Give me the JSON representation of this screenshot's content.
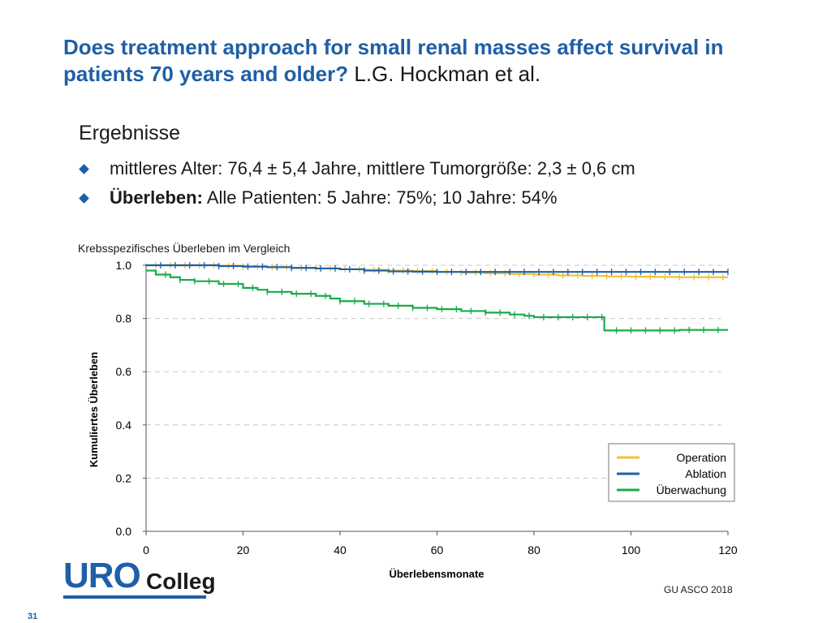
{
  "slide": {
    "title": "Does treatment approach for small renal masses affect survival in patients 70 years and older?",
    "authors": "L.G. Hockman et al.",
    "section": "Ergebnisse",
    "bullets": [
      {
        "bold": "",
        "text": "mittleres Alter: 76,4 ± 5,4 Jahre, mittlere Tumorgröße: 2,3 ± 0,6 cm"
      },
      {
        "bold": "Überleben:",
        "text": " Alle Patienten: 5 Jahre: 75%; 10 Jahre: 54%"
      }
    ],
    "logo_main": "URO",
    "logo_sub": "Colleg",
    "source": "GU ASCO 2018",
    "page_number": "31"
  },
  "chart_data": {
    "type": "line",
    "title": "Krebsspezifisches Überleben im Vergleich",
    "xlabel": "Überlebensmonate",
    "ylabel": "Kumuliertes Überleben",
    "xlim": [
      0,
      120
    ],
    "ylim": [
      0,
      1.0
    ],
    "xticks": [
      0,
      20,
      40,
      60,
      80,
      100,
      120
    ],
    "yticks": [
      "0.0",
      "0.2",
      "0.4",
      "0.6",
      "0.8",
      "1.0"
    ],
    "grid": "horizontal dashed",
    "legend_position": "bottom-right",
    "series": [
      {
        "name": "Operation",
        "color": "#f2c230",
        "x": [
          0,
          5,
          10,
          15,
          20,
          25,
          30,
          35,
          40,
          45,
          50,
          55,
          60,
          65,
          70,
          75,
          80,
          85,
          90,
          95,
          100,
          105,
          110,
          115,
          120
        ],
        "y": [
          1.0,
          1.0,
          1.0,
          0.998,
          0.995,
          0.993,
          0.99,
          0.988,
          0.985,
          0.983,
          0.98,
          0.978,
          0.975,
          0.972,
          0.97,
          0.967,
          0.965,
          0.962,
          0.96,
          0.958,
          0.957,
          0.956,
          0.955,
          0.955,
          0.955
        ]
      },
      {
        "name": "Ablation",
        "color": "#1f5fa6",
        "x": [
          0,
          5,
          10,
          15,
          20,
          25,
          30,
          35,
          40,
          45,
          50,
          55,
          60,
          65,
          70,
          75,
          80,
          85,
          90,
          95,
          100,
          105,
          110,
          115,
          120
        ],
        "y": [
          1.0,
          1.0,
          1.0,
          0.997,
          0.995,
          0.993,
          0.99,
          0.988,
          0.985,
          0.98,
          0.977,
          0.976,
          0.975,
          0.975,
          0.975,
          0.975,
          0.975,
          0.975,
          0.975,
          0.975,
          0.975,
          0.975,
          0.975,
          0.975,
          0.975
        ]
      },
      {
        "name": "Überwachung",
        "color": "#1aaa4a",
        "x": [
          0,
          2,
          5,
          7,
          10,
          15,
          20,
          23,
          25,
          30,
          35,
          38,
          40,
          45,
          50,
          55,
          60,
          65,
          70,
          75,
          78,
          80,
          85,
          90,
          94,
          94.5,
          100,
          105,
          110,
          115,
          120
        ],
        "y": [
          0.98,
          0.965,
          0.955,
          0.945,
          0.94,
          0.93,
          0.915,
          0.908,
          0.9,
          0.893,
          0.885,
          0.875,
          0.865,
          0.855,
          0.848,
          0.84,
          0.835,
          0.828,
          0.822,
          0.815,
          0.81,
          0.805,
          0.805,
          0.805,
          0.805,
          0.755,
          0.755,
          0.755,
          0.757,
          0.757,
          0.757
        ]
      }
    ]
  }
}
